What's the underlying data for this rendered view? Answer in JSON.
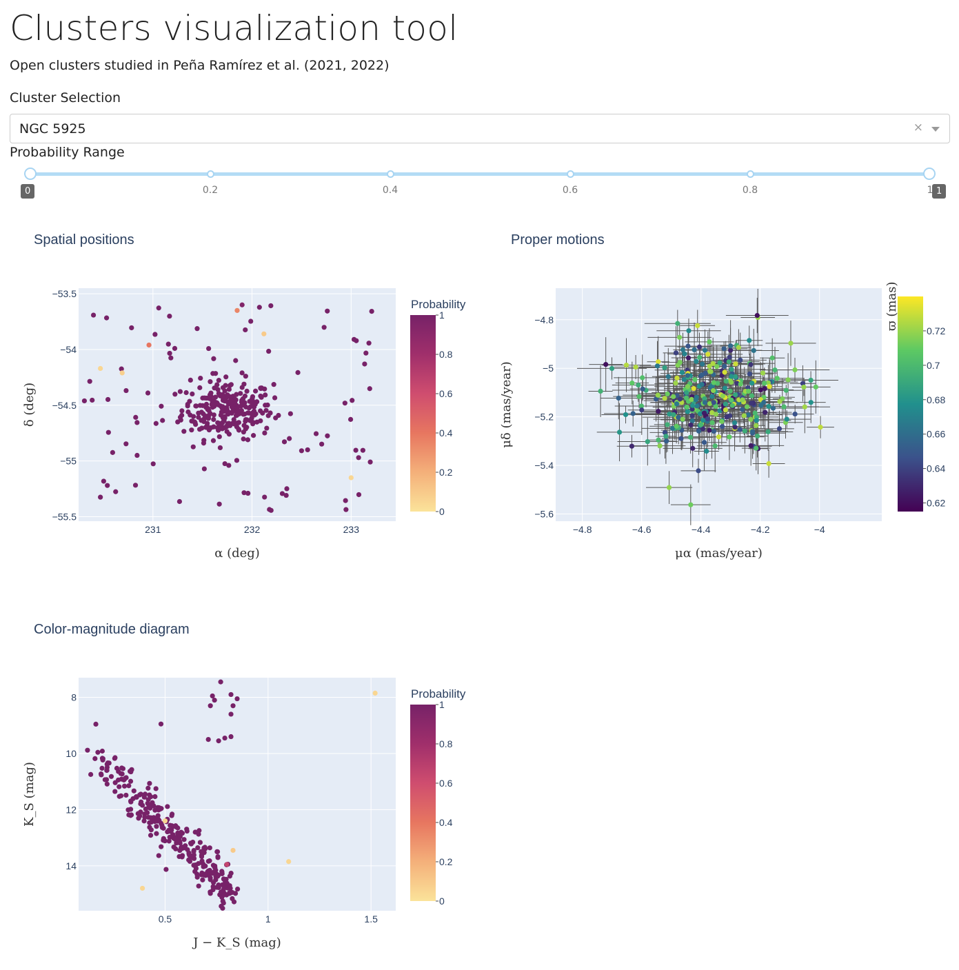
{
  "header": {
    "title": "Clusters visualization tool",
    "subtitle": "Open clusters studied in Peña Ramírez et al. (2021, 2022)"
  },
  "controls": {
    "cluster_label": "Cluster Selection",
    "cluster_value": "NGC 5925",
    "clear_icon": "×",
    "probability_label": "Probability Range",
    "probability_range": [
      0,
      1
    ],
    "slider_marks": [
      "0.2",
      "0.4",
      "0.6",
      "0.8"
    ],
    "slider_min_tooltip": "0",
    "slider_max_tooltip": "1",
    "slider_max_mark": "1"
  },
  "colors": {
    "plot_bg": "#e5ecf6",
    "gridline": "#ffffff",
    "slider": "#b3dcf5",
    "magma_scale": [
      "#fbe39a",
      "#f4b07a",
      "#e77660",
      "#cf4d6f",
      "#a02f6b",
      "#772268"
    ],
    "viridis_scale": [
      "#440154",
      "#3b528b",
      "#21908d",
      "#5dc963",
      "#fde725"
    ]
  },
  "chart_data": [
    {
      "type": "scatter",
      "title": "Spatial positions",
      "xlabel": "α (deg)",
      "ylabel": "δ (deg)",
      "xlim": [
        230.25,
        233.45
      ],
      "ylim": [
        -55.54,
        -53.45
      ],
      "xticks": [
        231,
        232,
        233
      ],
      "xtick_labels": [
        "231",
        "232",
        "233"
      ],
      "yticks": [
        -53.5,
        -54,
        -54.5,
        -55,
        -55.5
      ],
      "ytick_labels": [
        "−53.5",
        "−54",
        "−54.5",
        "−55",
        "−55.5"
      ],
      "colorbar": {
        "title": "Probability",
        "range": [
          0,
          1
        ],
        "ticks": [
          "0",
          "0.2",
          "0.4",
          "0.6",
          "0.8",
          "1"
        ],
        "scale": "magma"
      },
      "notable_points": [
        {
          "x": 231.9,
          "y": -53.6,
          "p": 0.95
        },
        {
          "x": 231.85,
          "y": -53.65,
          "p": 0.35
        },
        {
          "x": 232.12,
          "y": -53.86,
          "p": 0.1
        },
        {
          "x": 230.96,
          "y": -53.96,
          "p": 0.4
        },
        {
          "x": 233.0,
          "y": -55.15,
          "p": 0.05
        },
        {
          "x": 230.47,
          "y": -54.17,
          "p": 0.05
        },
        {
          "x": 230.69,
          "y": -54.21,
          "p": 0.08
        }
      ],
      "cluster": {
        "center": [
          231.75,
          -54.54
        ],
        "n_core": 260,
        "n_field": 90,
        "field_xrange": [
          230.3,
          233.3
        ],
        "field_yrange": [
          -55.45,
          -53.55
        ]
      }
    },
    {
      "type": "scatter",
      "title": "Proper motions",
      "xlabel": "μα (mas/year)",
      "ylabel": "μδ (mas/year)",
      "xlim": [
        -4.89,
        -3.79
      ],
      "ylim": [
        -5.63,
        -4.67
      ],
      "xticks": [
        -4.8,
        -4.6,
        -4.4,
        -4.2,
        -4
      ],
      "xtick_labels": [
        "−4.8",
        "−4.6",
        "−4.4",
        "−4.2",
        "−4"
      ],
      "yticks": [
        -4.8,
        -5,
        -5.2,
        -5.4,
        -5.6
      ],
      "ytick_labels": [
        "−4.8",
        "−5",
        "−5.2",
        "−5.4",
        "−5.6"
      ],
      "error_bars": true,
      "colorbar": {
        "title": "ϖ (mas)",
        "range": [
          0.615,
          0.74
        ],
        "ticks": [
          "0.62",
          "0.64",
          "0.66",
          "0.68",
          "0.7",
          "0.72"
        ],
        "scale": "viridis"
      },
      "cluster": {
        "center": [
          -4.36,
          -5.12
        ],
        "spread": [
          0.13,
          0.11
        ],
        "n": 320
      }
    },
    {
      "type": "scatter",
      "title": "Color-magnitude diagram",
      "xlabel": "J − K_S (mag)",
      "ylabel": "K_S (mag)",
      "xlim": [
        0.08,
        1.62
      ],
      "ylim": [
        15.6,
        7.3
      ],
      "xticks": [
        0.5,
        1,
        1.5
      ],
      "xtick_labels": [
        "0.5",
        "1",
        "1.5"
      ],
      "yticks": [
        8,
        10,
        12,
        14
      ],
      "ytick_labels": [
        "8",
        "10",
        "12",
        "14"
      ],
      "colorbar": {
        "title": "Probability",
        "range": [
          0,
          1
        ],
        "ticks": [
          "0",
          "0.2",
          "0.4",
          "0.6",
          "0.8",
          "1"
        ],
        "scale": "magma"
      },
      "giant_points": [
        {
          "x": 0.77,
          "y": 7.45
        },
        {
          "x": 0.82,
          "y": 7.9
        },
        {
          "x": 0.85,
          "y": 8.05
        },
        {
          "x": 0.73,
          "y": 7.95
        },
        {
          "x": 0.72,
          "y": 8.3
        },
        {
          "x": 0.74,
          "y": 8.1
        },
        {
          "x": 0.83,
          "y": 8.3
        },
        {
          "x": 0.82,
          "y": 8.6
        },
        {
          "x": 0.82,
          "y": 9.4
        },
        {
          "x": 0.79,
          "y": 9.45
        },
        {
          "x": 0.76,
          "y": 9.55
        },
        {
          "x": 0.71,
          "y": 9.5
        },
        {
          "x": 0.48,
          "y": 8.95
        }
      ],
      "outliers": [
        {
          "x": 1.52,
          "y": 7.85,
          "p": 0.05
        },
        {
          "x": 1.1,
          "y": 13.85,
          "p": 0.05
        },
        {
          "x": 0.83,
          "y": 13.45,
          "p": 0.1
        },
        {
          "x": 0.8,
          "y": 13.95,
          "p": 0.65
        },
        {
          "x": 0.5,
          "y": 12.4,
          "p": 0.05
        },
        {
          "x": 0.39,
          "y": 14.8,
          "p": 0.05
        }
      ],
      "main_sequence": {
        "x_start": 0.17,
        "y_start": 10.1,
        "x_end": 0.82,
        "y_end": 15.0,
        "n": 300
      }
    }
  ]
}
